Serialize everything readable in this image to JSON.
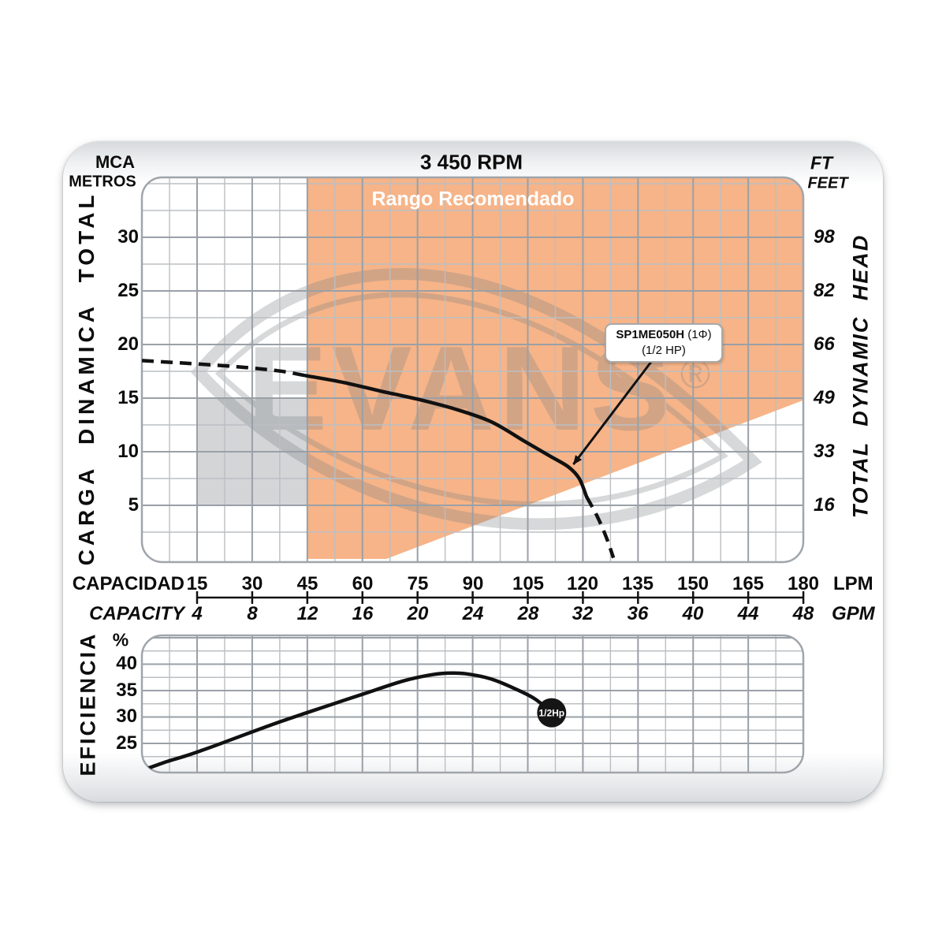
{
  "header": {
    "rpm_title": "3 450 RPM",
    "left_unit_line1": "MCA",
    "left_unit_line2": "METROS",
    "right_unit_line1": "FT",
    "right_unit_line2": "FEET"
  },
  "watermark": {
    "text": "EVANS",
    "registered": "®"
  },
  "head_chart": {
    "left_axis_title": "CARGA DINAMICA TOTAL",
    "right_axis_title": "TOTAL DYNAMIC HEAD",
    "recommended_label": "Rango Recomendado",
    "mca_ticks": [
      "30",
      "25",
      "20",
      "15",
      "10",
      "5"
    ],
    "ft_ticks": [
      "98",
      "82",
      "66",
      "49",
      "33",
      "16"
    ],
    "model_label_bold": "SP1ME050H",
    "model_label_phase": " (1Φ)",
    "model_label_hp": "(1/2 HP)"
  },
  "x_axis": {
    "label_lpm_row": "CAPACIDAD",
    "label_gpm_row": "CAPACITY",
    "unit_lpm": "LPM",
    "unit_gpm": "GPM",
    "lpm_ticks": [
      "15",
      "30",
      "45",
      "60",
      "75",
      "90",
      "105",
      "120",
      "135",
      "150",
      "165",
      "180"
    ],
    "gpm_ticks": [
      "4",
      "8",
      "12",
      "16",
      "20",
      "24",
      "28",
      "32",
      "36",
      "40",
      "44",
      "48"
    ]
  },
  "eff_chart": {
    "axis_title": "EFICIENCIA",
    "unit": "%",
    "ticks": [
      "40",
      "35",
      "30",
      "25"
    ],
    "dot_label": "1/2Hp"
  },
  "colors": {
    "recommended_fill": "#F6B488",
    "gray_zone_fill": "#D3D5D7",
    "grid_minor": "#bbbfc3",
    "grid_major": "#9aa0a7",
    "grid_border": "#a0a5ab",
    "curve": "#111111",
    "watermark": "#7d8084",
    "axis_line": "#111111"
  },
  "chart_data": [
    {
      "type": "line",
      "title": "3 450 RPM",
      "xlabel": "CAPACIDAD / CAPACITY",
      "x_unit_primary": "LPM",
      "x_unit_secondary": "GPM",
      "x_ticks_lpm": [
        15,
        30,
        45,
        60,
        75,
        90,
        105,
        120,
        135,
        150,
        165,
        180
      ],
      "x_ticks_gpm": [
        4,
        8,
        12,
        16,
        20,
        24,
        28,
        32,
        36,
        40,
        44,
        48
      ],
      "xlim_lpm": [
        0,
        180
      ],
      "ylabel_left": "CARGA DINAMICA TOTAL (MCA METROS)",
      "ylabel_right": "TOTAL DYNAMIC HEAD (FT FEET)",
      "y_ticks_m": [
        30,
        25,
        20,
        15,
        10,
        5
      ],
      "y_ticks_ft": [
        98,
        82,
        66,
        49,
        33,
        16
      ],
      "ylim_m": [
        0,
        35.6
      ],
      "grid": true,
      "series": [
        {
          "name": "head-dashed-low-flow",
          "style": "dashed",
          "points_lpm_m": [
            [
              0,
              18.5
            ],
            [
              12,
              18.25
            ],
            [
              25,
              17.95
            ],
            [
              37,
              17.55
            ],
            [
              44.5,
              17.1
            ]
          ]
        },
        {
          "name": "head-solid",
          "style": "solid",
          "points_lpm_m": [
            [
              44.5,
              17.1
            ],
            [
              55,
              16.45
            ],
            [
              65,
              15.65
            ],
            [
              75,
              14.9
            ],
            [
              85,
              14.0
            ],
            [
              95,
              12.8
            ],
            [
              104,
              11.0
            ],
            [
              111,
              9.6
            ],
            [
              116,
              8.6
            ],
            [
              119,
              7.5
            ],
            [
              121,
              5.8
            ]
          ]
        },
        {
          "name": "head-dashed-overrun",
          "style": "dashed",
          "points_lpm_m": [
            [
              121,
              5.8
            ],
            [
              124,
              3.9
            ],
            [
              126.5,
              1.9
            ],
            [
              128.3,
              0.1
            ]
          ]
        }
      ],
      "regions": [
        {
          "name": "rango-recomendado",
          "label": "Rango Recomendado",
          "polygon_lpm_m": [
            [
              45,
              35.6
            ],
            [
              180,
              35.6
            ],
            [
              180,
              14.8
            ],
            [
              66.5,
              0
            ],
            [
              45,
              0
            ]
          ]
        },
        {
          "name": "gray-zone",
          "lpm_range": [
            15,
            45
          ],
          "m_range": [
            5,
            15
          ]
        }
      ],
      "annotation": {
        "model": "SP1ME050H (1Φ)",
        "power": "(1/2 HP)",
        "points_to_lpm_m": [
          117,
          8.9
        ]
      }
    },
    {
      "type": "line",
      "ylabel": "EFICIENCIA %",
      "y_ticks_pct": [
        40,
        35,
        30,
        25
      ],
      "ylim_pct": [
        19.6,
        45.5
      ],
      "xlim_lpm": [
        0,
        180
      ],
      "grid": true,
      "series": [
        {
          "name": "eficiencia",
          "style": "solid",
          "points_lpm_pct": [
            [
              1.7,
              20.3
            ],
            [
              7,
              21.6
            ],
            [
              12.2,
              22.7
            ],
            [
              20,
              24.6
            ],
            [
              28.5,
              26.8
            ],
            [
              38,
              29.2
            ],
            [
              50,
              32.0
            ],
            [
              60,
              34.3
            ],
            [
              71,
              36.8
            ],
            [
              78,
              37.9
            ],
            [
              83,
              38.3
            ],
            [
              88,
              38.2
            ],
            [
              95,
              37.2
            ],
            [
              102,
              35.2
            ],
            [
              107,
              33.4
            ],
            [
              111.5,
              30.8
            ]
          ]
        }
      ],
      "end_marker": {
        "label": "1/2Hp",
        "at_lpm_pct": [
          111.5,
          30.8
        ]
      }
    }
  ]
}
